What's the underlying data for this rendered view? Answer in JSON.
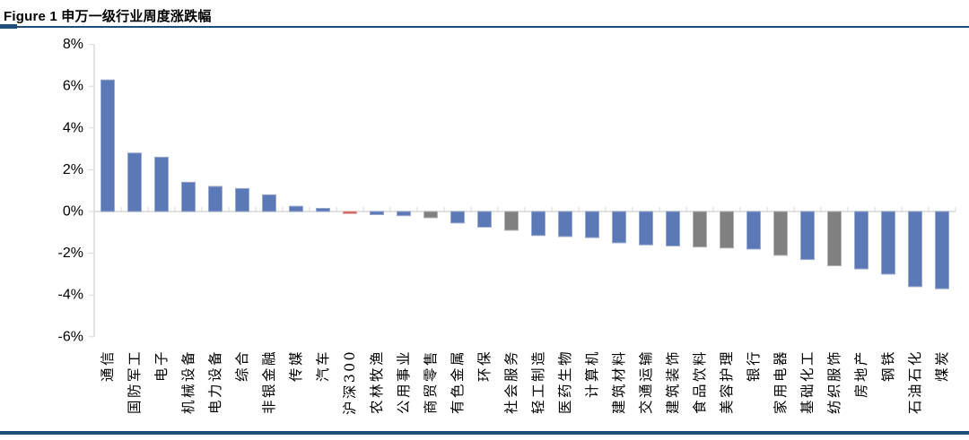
{
  "figure": {
    "title": "Figure 1  申万一级行业周度涨跌幅"
  },
  "colors": {
    "rule_navy": "#1F4E79",
    "axis_line": "#D9D9D9",
    "tick_label": "#000000",
    "background": "#FFFFFF"
  },
  "chart_data": {
    "type": "bar",
    "title": "申万一级行业周度涨跌幅",
    "xlabel": "",
    "ylabel": "",
    "ylim": [
      -6,
      8
    ],
    "grid": false,
    "legend": null,
    "yticks": [
      {
        "value": 8,
        "label": "8%"
      },
      {
        "value": 6,
        "label": "6%"
      },
      {
        "value": 4,
        "label": "4%"
      },
      {
        "value": 2,
        "label": "2%"
      },
      {
        "value": 0,
        "label": "0%"
      },
      {
        "value": -2,
        "label": "-2%"
      },
      {
        "value": -4,
        "label": "-4%"
      },
      {
        "value": -6,
        "label": "-6%"
      }
    ],
    "categories": [
      "通信",
      "国防军工",
      "电子",
      "机械设备",
      "电力设备",
      "综合",
      "非银金融",
      "传媒",
      "汽车",
      "沪深300",
      "农林牧渔",
      "公用事业",
      "商贸零售",
      "有色金属",
      "环保",
      "社会服务",
      "轻工制造",
      "医药生物",
      "计算机",
      "建筑材料",
      "交通运输",
      "建筑装饰",
      "食品饮料",
      "美容护理",
      "银行",
      "家用电器",
      "基础化工",
      "纺织服饰",
      "房地产",
      "钢铁",
      "石油石化",
      "煤炭"
    ],
    "values": [
      6.3,
      2.8,
      2.6,
      1.4,
      1.2,
      1.1,
      0.8,
      0.25,
      0.15,
      -0.1,
      -0.15,
      -0.2,
      -0.3,
      -0.55,
      -0.75,
      -0.9,
      -1.15,
      -1.2,
      -1.25,
      -1.5,
      -1.6,
      -1.65,
      -1.7,
      -1.75,
      -1.8,
      -2.1,
      -2.3,
      -2.6,
      -2.75,
      -3.0,
      -3.6,
      -3.7
    ],
    "bar_colors": [
      "blue",
      "blue",
      "blue",
      "blue",
      "blue",
      "blue",
      "blue",
      "blue",
      "blue",
      "red",
      "blue",
      "blue",
      "gray",
      "blue",
      "blue",
      "gray",
      "blue",
      "blue",
      "blue",
      "blue",
      "blue",
      "blue",
      "gray",
      "gray",
      "blue",
      "gray",
      "blue",
      "gray",
      "blue",
      "blue",
      "blue",
      "blue"
    ],
    "palette": {
      "blue": {
        "fill": "#5B79B6",
        "stroke": "#98A8CF"
      },
      "gray": {
        "fill": "#808080",
        "stroke": "#B3B3B3"
      },
      "red": {
        "fill": "#C9504C",
        "stroke": "#E2A4A2"
      }
    }
  }
}
